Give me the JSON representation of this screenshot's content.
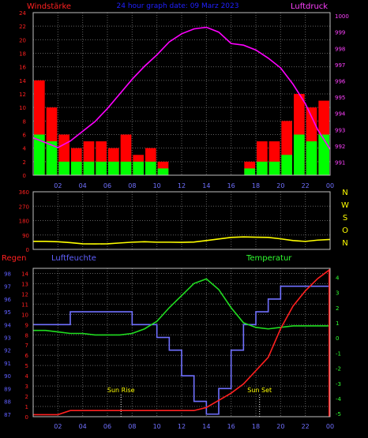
{
  "colors": {
    "background": "#000000",
    "frame": "#c0c0c0",
    "grid": "#606060",
    "wind_avg": "#00ff00",
    "wind_gust": "#ff0000",
    "pressure": "#ff00ff",
    "direction": "#ffff00",
    "rain": "#ff2020",
    "humidity": "#7070ff",
    "temperature": "#20dd20",
    "sun_label": "#ffff00",
    "hum_axis": "#6060ff",
    "temp_axis": "#30ff30"
  },
  "chart_data": [
    {
      "id": "wind-pressure",
      "type": "bar",
      "title": "24 hour graph date: 09 Marz 2023",
      "left_label": "Windstärke",
      "right_label": "Luftdruck",
      "x_ticks": [
        "02",
        "04",
        "06",
        "08",
        "10",
        "12",
        "14",
        "16",
        "18",
        "20",
        "22",
        "00"
      ],
      "left_ticks": [
        "0",
        "2",
        "4",
        "6",
        "8",
        "10",
        "12",
        "14",
        "16",
        "18",
        "20",
        "22",
        "24"
      ],
      "right_ticks": [
        "991",
        "992",
        "993",
        "994",
        "995",
        "996",
        "997",
        "998",
        "999",
        "1000"
      ],
      "ylim_left": [
        0,
        24
      ],
      "ylim_right": [
        990.2,
        1000.2
      ],
      "series": [
        {
          "name": "Windstärke",
          "hours": [
            1,
            2,
            3,
            4,
            5,
            6,
            7,
            8,
            9,
            10,
            11,
            12,
            13,
            14,
            15,
            16,
            17,
            18,
            19,
            20,
            21,
            22,
            23,
            24
          ],
          "avg": [
            6,
            5,
            2,
            2,
            2,
            2,
            2,
            2,
            2,
            2,
            1,
            0,
            0,
            0,
            0,
            0,
            0,
            1,
            2,
            2,
            3,
            6,
            5,
            6
          ],
          "gust": [
            14,
            10,
            6,
            4,
            5,
            5,
            4,
            6,
            3,
            4,
            2,
            0,
            0,
            0,
            0,
            0,
            0,
            2,
            5,
            5,
            8,
            12,
            10,
            11
          ]
        },
        {
          "name": "Luftdruck",
          "hours": [
            0,
            1,
            2,
            3,
            4,
            5,
            6,
            7,
            8,
            9,
            10,
            11,
            12,
            13,
            14,
            15,
            16,
            17,
            18,
            19,
            20,
            21,
            22,
            23,
            24
          ],
          "values": [
            992.5,
            992.2,
            991.9,
            992.3,
            992.9,
            993.5,
            994.3,
            995.2,
            996.1,
            996.9,
            997.6,
            998.4,
            998.9,
            999.2,
            999.3,
            999.0,
            998.3,
            998.2,
            997.9,
            997.4,
            996.8,
            995.8,
            994.6,
            993.0,
            991.8
          ]
        }
      ]
    },
    {
      "id": "direction",
      "type": "line",
      "title": "",
      "left_ticks": [
        "0",
        "90",
        "180",
        "270",
        "360"
      ],
      "right_ticks": [
        "N",
        "W",
        "S",
        "O",
        "N"
      ],
      "ylim": [
        0,
        360
      ],
      "series": [
        {
          "name": "",
          "hours": [
            0,
            1,
            2,
            3,
            4,
            5,
            6,
            7,
            8,
            9,
            10,
            11,
            12,
            13,
            14,
            15,
            16,
            17,
            18,
            19,
            20,
            21,
            22,
            23,
            24
          ],
          "values": [
            50,
            50,
            48,
            42,
            35,
            34,
            35,
            40,
            45,
            48,
            45,
            45,
            44,
            46,
            55,
            65,
            75,
            78,
            76,
            75,
            66,
            55,
            50,
            58,
            62
          ]
        }
      ]
    },
    {
      "id": "rain-hum-temp",
      "type": "line",
      "left_title": "Regen",
      "mid_title": "Luftfeuchte",
      "right_title": "Temperatur",
      "x_ticks": [
        "02",
        "04",
        "06",
        "08",
        "10",
        "12",
        "14",
        "16",
        "18",
        "20",
        "22",
        "00"
      ],
      "rain_ticks": [
        "0",
        "1",
        "2",
        "3",
        "4",
        "5",
        "6",
        "7",
        "8",
        "9",
        "10",
        "11",
        "12",
        "13",
        "14"
      ],
      "hum_ticks": [
        "87",
        "88",
        "89",
        "90",
        "91",
        "92",
        "93",
        "94",
        "95",
        "96",
        "97",
        "98"
      ],
      "temp_ticks": [
        "-5",
        "-4",
        "-3",
        "-2",
        "-1",
        "0",
        "1",
        "2",
        "3",
        "4"
      ],
      "sun_rise_label": "Sun Rise",
      "sun_set_label": "Sun Set",
      "sun_rise_hour": 7.1,
      "sun_set_hour": 18.3,
      "rain_lim": [
        0,
        14.5
      ],
      "hum_lim": [
        86.8,
        98.4
      ],
      "temp_lim": [
        -5.2,
        4.6
      ],
      "series": [
        {
          "name": "Regen",
          "hours": [
            0,
            1,
            2,
            3,
            4,
            5,
            6,
            7,
            8,
            9,
            10,
            11,
            12,
            13,
            14,
            15,
            16,
            17,
            18,
            19,
            20,
            21,
            22,
            23,
            24
          ],
          "values": [
            0.2,
            0.2,
            0.2,
            0.6,
            0.6,
            0.6,
            0.6,
            0.6,
            0.6,
            0.6,
            0.6,
            0.6,
            0.6,
            0.6,
            0.9,
            1.6,
            2.3,
            3.2,
            4.5,
            5.8,
            8.6,
            10.8,
            12.3,
            13.5,
            14.4
          ]
        },
        {
          "name": "Luftfeuchte",
          "hours": [
            0,
            1,
            2,
            3,
            4,
            5,
            6,
            7,
            8,
            9,
            10,
            11,
            12,
            13,
            14,
            15,
            16,
            17,
            18,
            19,
            20,
            21,
            22,
            23,
            24
          ],
          "values": [
            94,
            94,
            94,
            95,
            95,
            95,
            95,
            95,
            94,
            94,
            93,
            92,
            90,
            88,
            87,
            89,
            92,
            94,
            95,
            96,
            97,
            97,
            97,
            97,
            97
          ]
        },
        {
          "name": "Temperatur",
          "hours": [
            0,
            1,
            2,
            3,
            4,
            5,
            6,
            7,
            8,
            9,
            10,
            11,
            12,
            13,
            14,
            15,
            16,
            17,
            18,
            19,
            20,
            21,
            22,
            23,
            24
          ],
          "values": [
            0.5,
            0.5,
            0.4,
            0.3,
            0.3,
            0.2,
            0.2,
            0.2,
            0.3,
            0.6,
            1.1,
            2.0,
            2.8,
            3.6,
            3.9,
            3.2,
            2.0,
            1.0,
            0.7,
            0.6,
            0.7,
            0.8,
            0.8,
            0.8,
            0.8
          ]
        }
      ]
    }
  ]
}
